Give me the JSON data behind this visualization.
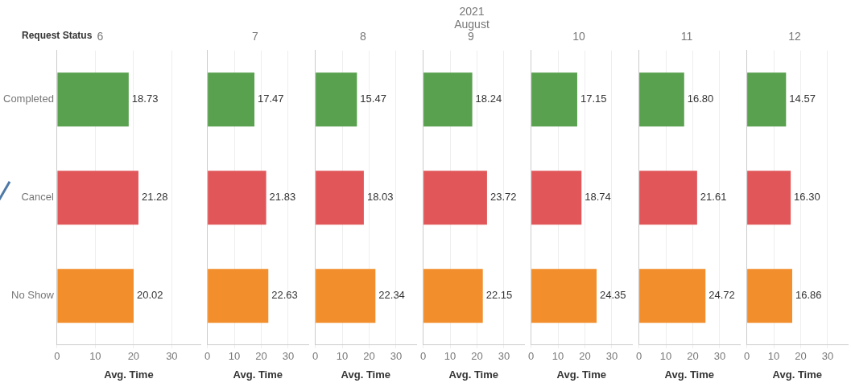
{
  "chart_data": [
    {
      "type": "bar",
      "orientation": "horizontal",
      "title": "6",
      "xlabel": "Avg. Time",
      "categories": [
        "Completed",
        "Cancel",
        "No Show"
      ],
      "values": [
        18.73,
        21.28,
        20.02
      ],
      "value_labels": [
        "18.73",
        "21.28",
        "20.02"
      ],
      "colors": [
        "#59a14f",
        "#e15759",
        "#f28e2b"
      ],
      "xlim": [
        0,
        37.5
      ],
      "xticks": [
        0,
        10,
        20,
        30
      ],
      "grid": "x",
      "annotations": [
        "2021",
        "August",
        "Request Status"
      ]
    },
    {
      "type": "bar",
      "orientation": "horizontal",
      "title": "7",
      "xlabel": "Avg. Time",
      "categories": [
        null,
        null,
        null
      ],
      "values": [
        17.47,
        21.83,
        22.63
      ],
      "value_labels": [
        "17.47",
        "21.83",
        "22.63"
      ],
      "colors": [
        "#59a14f",
        "#e15759",
        "#f28e2b"
      ],
      "xlim": [
        0,
        37.5
      ],
      "xticks": [
        0,
        10,
        20,
        30
      ],
      "grid": "x",
      "tick_labels": "x"
    },
    {
      "type": "bar",
      "orientation": "horizontal",
      "title": "8",
      "xlabel": "Avg. Time",
      "categories": [
        null,
        null,
        null
      ],
      "values": [
        15.47,
        18.03,
        22.34
      ],
      "value_labels": [
        "15.47",
        "18.03",
        "22.34"
      ],
      "colors": [
        "#59a14f",
        "#e15759",
        "#f28e2b"
      ],
      "xlim": [
        0,
        37.5
      ],
      "xticks": [
        0,
        10,
        20,
        30
      ],
      "grid": "x",
      "tick_labels": "x"
    },
    {
      "type": "bar",
      "orientation": "horizontal",
      "title": "9",
      "xlabel": "Avg. Time",
      "categories": [
        null,
        null,
        null
      ],
      "values": [
        18.24,
        23.72,
        22.15
      ],
      "value_labels": [
        "18.24",
        "23.72",
        "22.15"
      ],
      "colors": [
        "#59a14f",
        "#e15759",
        "#f28e2b"
      ],
      "xlim": [
        0,
        37.5
      ],
      "xticks": [
        0,
        10,
        20,
        30
      ],
      "grid": "x",
      "tick_labels": "x"
    },
    {
      "type": "bar",
      "orientation": "horizontal",
      "title": "10",
      "xlabel": "Avg. Time",
      "categories": [
        null,
        null,
        null
      ],
      "values": [
        17.15,
        18.74,
        24.35
      ],
      "value_labels": [
        "17.15",
        "18.74",
        "24.35"
      ],
      "colors": [
        "#59a14f",
        "#e15759",
        "#f28e2b"
      ],
      "xlim": [
        0,
        37.5
      ],
      "xticks": [
        0,
        10,
        20,
        30
      ],
      "grid": "x",
      "tick_labels": "x"
    },
    {
      "type": "bar",
      "orientation": "horizontal",
      "title": "11",
      "xlabel": "Avg. Time",
      "categories": [
        null,
        null,
        null
      ],
      "values": [
        16.8,
        21.61,
        24.72
      ],
      "value_labels": [
        "16.80",
        "21.61",
        "24.72"
      ],
      "colors": [
        "#59a14f",
        "#e15759",
        "#f28e2b"
      ],
      "xlim": [
        0,
        37.5
      ],
      "xticks": [
        0,
        10,
        20,
        30
      ],
      "grid": "x",
      "tick_labels": "x"
    },
    {
      "type": "bar",
      "orientation": "horizontal",
      "title": "12",
      "xlabel": "Avg. Time",
      "categories": [
        null,
        null,
        null
      ],
      "values": [
        14.57,
        16.3,
        16.86
      ],
      "value_labels": [
        "14.57",
        "16.30",
        "16.86"
      ],
      "colors": [
        "#59a14f",
        "#e15759",
        "#f28e2b"
      ],
      "xlim": [
        0,
        37.5
      ],
      "xticks": [
        0,
        10,
        20,
        30
      ],
      "grid": "x",
      "tick_labels": "x"
    }
  ]
}
